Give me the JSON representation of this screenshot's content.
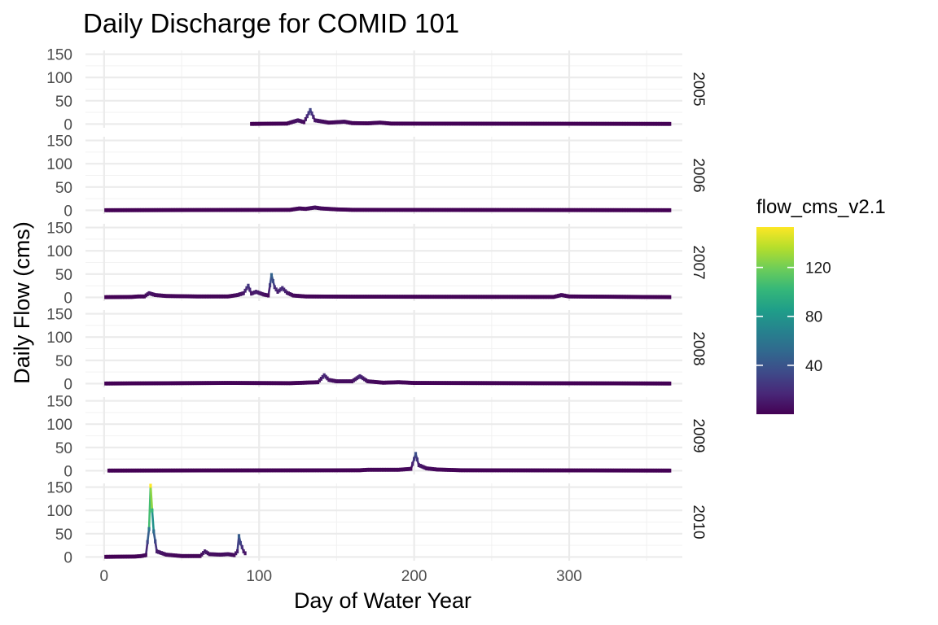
{
  "chart_data": {
    "type": "line",
    "title": "Daily Discharge for COMID 101",
    "xlabel": "Day of Water Year",
    "ylabel": "Daily Flow (cms)",
    "xlim": [
      -12,
      373
    ],
    "ylim": [
      -8,
      158
    ],
    "x_ticks": [
      0,
      100,
      200,
      300
    ],
    "y_ticks": [
      0,
      50,
      100,
      150
    ],
    "grid": true,
    "facet_by": "year",
    "legend": {
      "title": "flow_cms_v2.1",
      "placement": "right",
      "type": "colorbar",
      "palette": "viridis",
      "ticks": [
        40,
        80,
        120
      ],
      "min": 0,
      "max": 153,
      "colors": [
        "#440154",
        "#482878",
        "#3E4A89",
        "#31688E",
        "#26828E",
        "#1F9E89",
        "#35B779",
        "#6DCD59",
        "#B4DE2C",
        "#FDE725"
      ]
    },
    "panels": [
      {
        "label": "2005",
        "start": 95,
        "end": 365,
        "base": 0.3,
        "points": [
          [
            95,
            0.3
          ],
          [
            118,
            1
          ],
          [
            125,
            8
          ],
          [
            129,
            4
          ],
          [
            133,
            30
          ],
          [
            136,
            8
          ],
          [
            145,
            3
          ],
          [
            155,
            5
          ],
          [
            160,
            2
          ],
          [
            170,
            1.5
          ],
          [
            178,
            3
          ],
          [
            185,
            1
          ],
          [
            365,
            0.3
          ]
        ]
      },
      {
        "label": "2006",
        "start": 1,
        "end": 365,
        "base": 0.2,
        "points": [
          [
            1,
            0.2
          ],
          [
            120,
            1
          ],
          [
            126,
            4
          ],
          [
            130,
            3
          ],
          [
            136,
            6
          ],
          [
            140,
            4
          ],
          [
            150,
            2
          ],
          [
            160,
            1
          ],
          [
            365,
            0.2
          ]
        ]
      },
      {
        "label": "2007",
        "start": 1,
        "end": 365,
        "base": 0.5,
        "points": [
          [
            1,
            0.5
          ],
          [
            18,
            1
          ],
          [
            22,
            2
          ],
          [
            26,
            2
          ],
          [
            29,
            9
          ],
          [
            33,
            5
          ],
          [
            40,
            3
          ],
          [
            60,
            2
          ],
          [
            80,
            2
          ],
          [
            86,
            5
          ],
          [
            90,
            9
          ],
          [
            93,
            25
          ],
          [
            95,
            8
          ],
          [
            98,
            12
          ],
          [
            103,
            6
          ],
          [
            106,
            4
          ],
          [
            108,
            48
          ],
          [
            110,
            22
          ],
          [
            112,
            12
          ],
          [
            115,
            20
          ],
          [
            118,
            10
          ],
          [
            122,
            4
          ],
          [
            130,
            2
          ],
          [
            160,
            1.5
          ],
          [
            290,
            1
          ],
          [
            295,
            5
          ],
          [
            300,
            2
          ],
          [
            365,
            0.5
          ]
        ]
      },
      {
        "label": "2008",
        "start": 1,
        "end": 365,
        "base": 0.3,
        "points": [
          [
            1,
            0.3
          ],
          [
            80,
            1.5
          ],
          [
            120,
            1
          ],
          [
            138,
            3
          ],
          [
            142,
            18
          ],
          [
            145,
            8
          ],
          [
            150,
            5
          ],
          [
            160,
            5
          ],
          [
            165,
            16
          ],
          [
            170,
            5
          ],
          [
            180,
            2
          ],
          [
            190,
            3
          ],
          [
            200,
            1.5
          ],
          [
            365,
            0.3
          ]
        ]
      },
      {
        "label": "2009",
        "start": 3,
        "end": 365,
        "base": 0.3,
        "points": [
          [
            3,
            0.3
          ],
          [
            165,
            1
          ],
          [
            170,
            2
          ],
          [
            190,
            2
          ],
          [
            198,
            4
          ],
          [
            201,
            36
          ],
          [
            203,
            12
          ],
          [
            208,
            5
          ],
          [
            215,
            2.5
          ],
          [
            230,
            1
          ],
          [
            365,
            0.3
          ]
        ]
      },
      {
        "label": "2010",
        "start": 1,
        "end": 91,
        "base": 0.3,
        "points": [
          [
            1,
            0.3
          ],
          [
            20,
            1
          ],
          [
            24,
            2
          ],
          [
            27,
            4
          ],
          [
            29,
            60
          ],
          [
            30,
            153
          ],
          [
            31,
            100
          ],
          [
            32,
            55
          ],
          [
            34,
            12
          ],
          [
            40,
            5
          ],
          [
            50,
            2
          ],
          [
            62,
            2
          ],
          [
            65,
            12
          ],
          [
            68,
            6
          ],
          [
            75,
            5
          ],
          [
            80,
            6
          ],
          [
            84,
            4
          ],
          [
            86,
            12
          ],
          [
            87,
            45
          ],
          [
            88,
            30
          ],
          [
            90,
            12
          ],
          [
            91,
            8
          ]
        ]
      }
    ]
  }
}
